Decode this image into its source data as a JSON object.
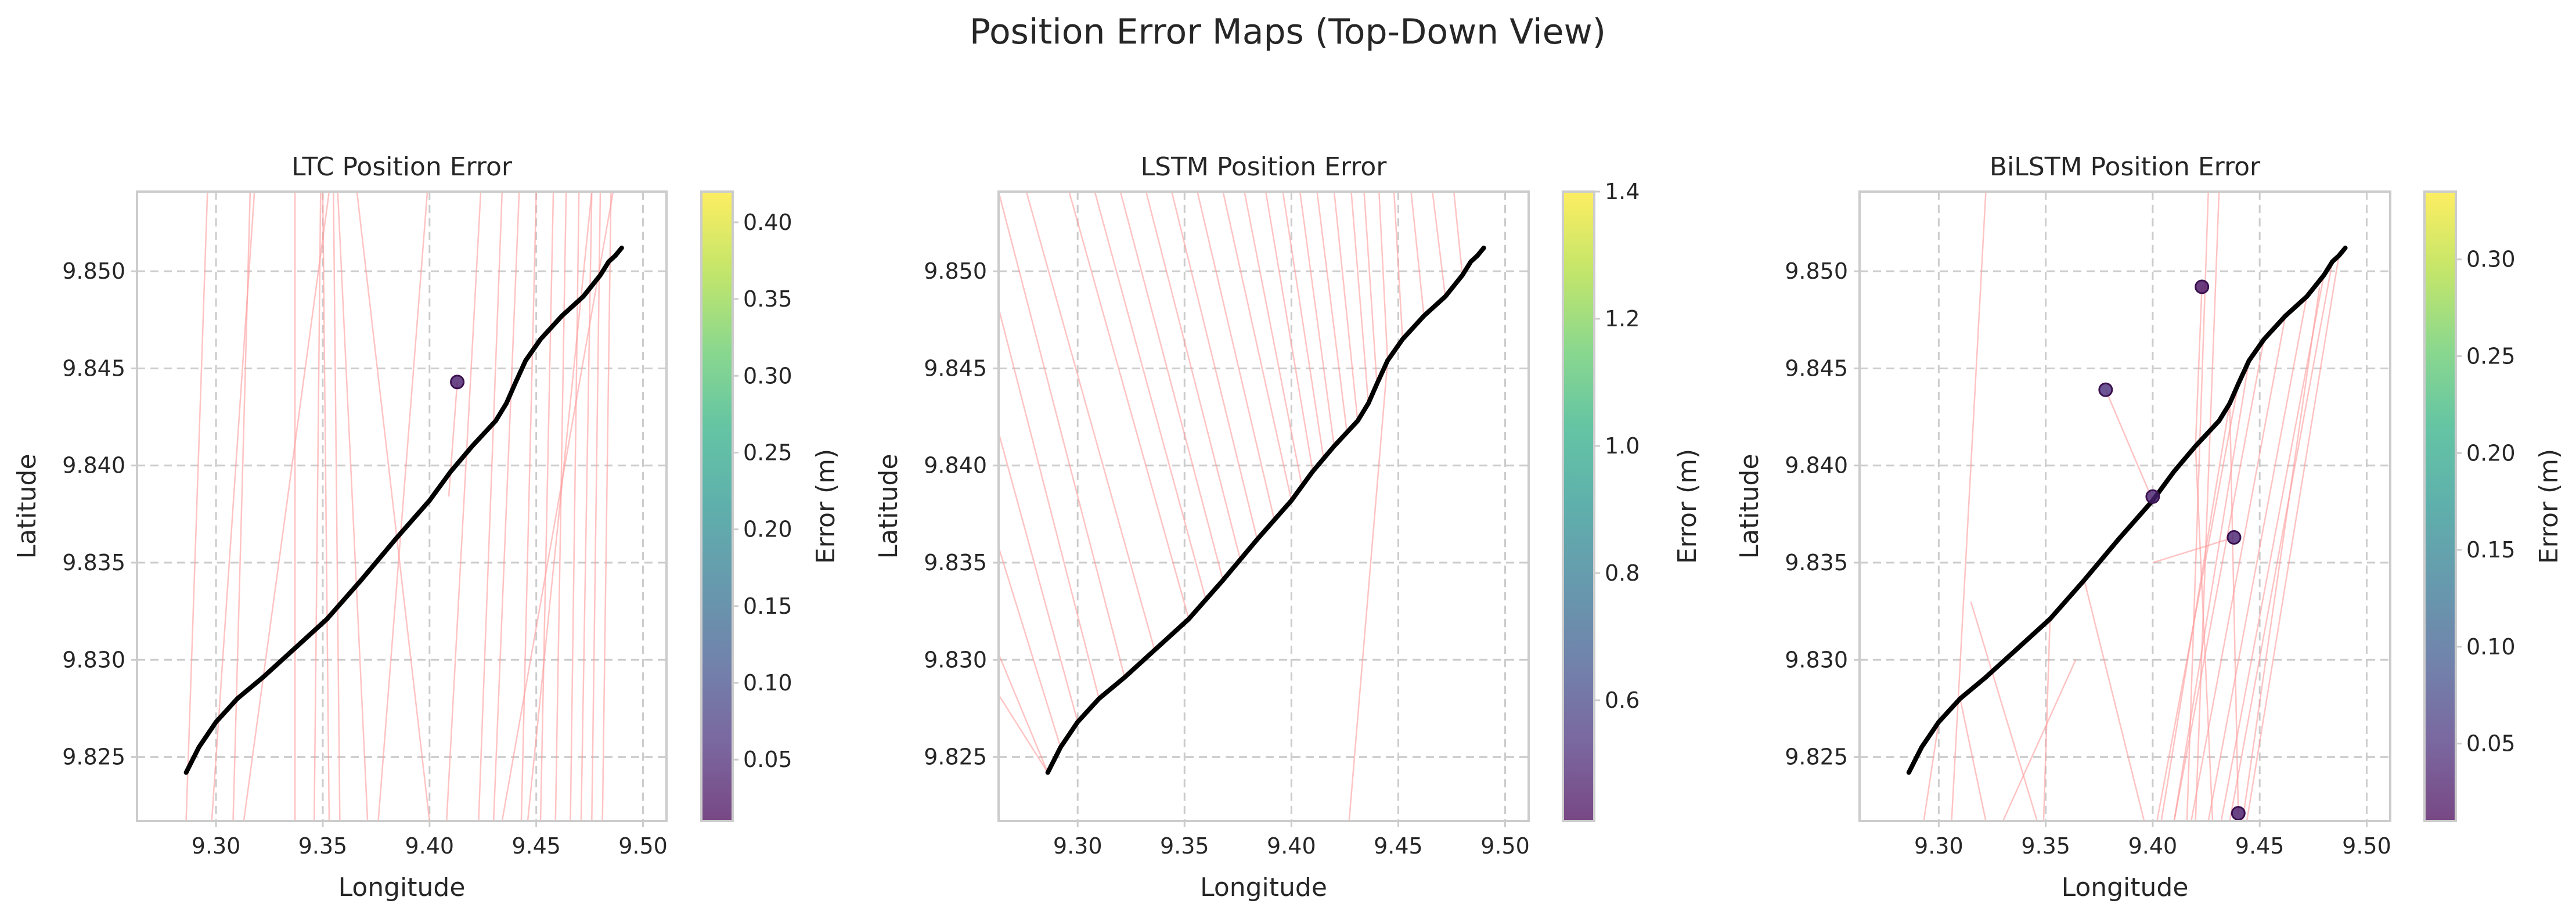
{
  "figure": {
    "suptitle": "Position Error Maps (Top-Down View)"
  },
  "chart_data": [
    {
      "type": "scatter",
      "title": "LTC Position Error",
      "xlabel": "Longitude",
      "ylabel": "Latitude",
      "colorbar_label": "Error (m)",
      "xlim": [
        9.263,
        9.511
      ],
      "ylim": [
        9.8217,
        9.8541
      ],
      "xticks": [
        "9.30",
        "9.35",
        "9.40",
        "9.45",
        "9.50"
      ],
      "yticks": [
        "9.825",
        "9.830",
        "9.835",
        "9.840",
        "9.845",
        "9.850"
      ],
      "grid": true,
      "colorbar": {
        "min": 0.01,
        "max": 0.42,
        "ticks": [
          "0.05",
          "0.10",
          "0.15",
          "0.20",
          "0.25",
          "0.30",
          "0.35",
          "0.40"
        ]
      },
      "truth": {
        "x": [
          9.286,
          9.292,
          9.3,
          9.31,
          9.322,
          9.336,
          9.352,
          9.368,
          9.384,
          9.4,
          9.41,
          9.42,
          9.431,
          9.436,
          9.44,
          9.445,
          9.452,
          9.462,
          9.472,
          9.48,
          9.484,
          9.487,
          9.49
        ],
        "y": [
          9.8242,
          9.8255,
          9.8268,
          9.828,
          9.8291,
          9.8305,
          9.8321,
          9.8341,
          9.8362,
          9.8382,
          9.8397,
          9.841,
          9.8423,
          9.8432,
          9.8442,
          9.8454,
          9.8465,
          9.8477,
          9.8487,
          9.8498,
          9.8505,
          9.8508,
          9.8512
        ]
      },
      "error_segments": [
        {
          "from": [
            9.286,
            9.8217
          ],
          "to": [
            9.296,
            9.8541
          ]
        },
        {
          "from": [
            9.298,
            9.8217
          ],
          "to": [
            9.318,
            9.8541
          ]
        },
        {
          "from": [
            9.313,
            9.8217
          ],
          "to": [
            9.353,
            9.8541
          ]
        },
        {
          "from": [
            9.308,
            9.8217
          ],
          "to": [
            9.316,
            9.8541
          ]
        },
        {
          "from": [
            9.337,
            9.8217
          ],
          "to": [
            9.337,
            9.8541
          ]
        },
        {
          "from": [
            9.346,
            9.8217
          ],
          "to": [
            9.349,
            9.8541
          ]
        },
        {
          "from": [
            9.353,
            9.8217
          ],
          "to": [
            9.35,
            9.8541
          ]
        },
        {
          "from": [
            9.358,
            9.8217
          ],
          "to": [
            9.355,
            9.8541
          ]
        },
        {
          "from": [
            9.371,
            9.8217
          ],
          "to": [
            9.357,
            9.8541
          ]
        },
        {
          "from": [
            9.4,
            9.8217
          ],
          "to": [
            9.366,
            9.8541
          ]
        },
        {
          "from": [
            9.376,
            9.8217
          ],
          "to": [
            9.399,
            9.8541
          ]
        },
        {
          "from": [
            9.413,
            9.8443
          ],
          "to": [
            9.409,
            9.8384
          ]
        },
        {
          "from": [
            9.408,
            9.8217
          ],
          "to": [
            9.424,
            9.8541
          ]
        },
        {
          "from": [
            9.423,
            9.8217
          ],
          "to": [
            9.434,
            9.8541
          ]
        },
        {
          "from": [
            9.43,
            9.8217
          ],
          "to": [
            9.442,
            9.8541
          ]
        },
        {
          "from": [
            9.443,
            9.8217
          ],
          "to": [
            9.45,
            9.8541
          ]
        },
        {
          "from": [
            9.452,
            9.8217
          ],
          "to": [
            9.458,
            9.8541
          ]
        },
        {
          "from": [
            9.459,
            9.8217
          ],
          "to": [
            9.464,
            9.8541
          ]
        },
        {
          "from": [
            9.466,
            9.8217
          ],
          "to": [
            9.47,
            9.8541
          ]
        },
        {
          "from": [
            9.471,
            9.8217
          ],
          "to": [
            9.476,
            9.8541
          ]
        },
        {
          "from": [
            9.476,
            9.8217
          ],
          "to": [
            9.48,
            9.8541
          ]
        },
        {
          "from": [
            9.481,
            9.8217
          ],
          "to": [
            9.485,
            9.8541
          ]
        },
        {
          "from": [
            9.446,
            9.8217
          ],
          "to": [
            9.476,
            9.8541
          ]
        },
        {
          "from": [
            9.434,
            9.8217
          ],
          "to": [
            9.486,
            9.8541
          ]
        }
      ],
      "points": [
        {
          "x": 9.413,
          "y": 9.8443,
          "error": 0.04
        }
      ]
    },
    {
      "type": "scatter",
      "title": "LSTM Position Error",
      "xlabel": "Longitude",
      "ylabel": "Latitude",
      "colorbar_label": "Error (m)",
      "xlim": [
        9.263,
        9.511
      ],
      "ylim": [
        9.8217,
        9.8541
      ],
      "xticks": [
        "9.30",
        "9.35",
        "9.40",
        "9.45",
        "9.50"
      ],
      "yticks": [
        "9.825",
        "9.830",
        "9.835",
        "9.840",
        "9.845",
        "9.850"
      ],
      "grid": true,
      "colorbar": {
        "min": 0.41,
        "max": 1.4,
        "ticks": [
          "0.6",
          "0.8",
          "1.0",
          "1.2",
          "1.4"
        ]
      },
      "truth": {
        "x": [
          9.286,
          9.292,
          9.3,
          9.31,
          9.322,
          9.336,
          9.352,
          9.368,
          9.384,
          9.4,
          9.41,
          9.42,
          9.431,
          9.436,
          9.44,
          9.445,
          9.452,
          9.462,
          9.472,
          9.48,
          9.484,
          9.487,
          9.49
        ],
        "y": [
          9.8242,
          9.8255,
          9.8268,
          9.828,
          9.8291,
          9.8305,
          9.8321,
          9.8341,
          9.8362,
          9.8382,
          9.8397,
          9.841,
          9.8423,
          9.8432,
          9.8442,
          9.8454,
          9.8465,
          9.8477,
          9.8487,
          9.8498,
          9.8505,
          9.8508,
          9.8512
        ]
      },
      "error_segments": [
        {
          "from": [
            9.286,
            9.8242
          ],
          "to": [
            9.263,
            9.8303
          ]
        },
        {
          "from": [
            9.292,
            9.8255
          ],
          "to": [
            9.263,
            9.8358
          ]
        },
        {
          "from": [
            9.3,
            9.8268
          ],
          "to": [
            9.263,
            9.8417
          ]
        },
        {
          "from": [
            9.31,
            9.828
          ],
          "to": [
            9.263,
            9.8481
          ]
        },
        {
          "from": [
            9.322,
            9.8291
          ],
          "to": [
            9.263,
            9.8541
          ]
        },
        {
          "from": [
            9.336,
            9.8305
          ],
          "to": [
            9.276,
            9.8541
          ]
        },
        {
          "from": [
            9.352,
            9.8321
          ],
          "to": [
            9.296,
            9.8541
          ]
        },
        {
          "from": [
            9.36,
            9.8331
          ],
          "to": [
            9.308,
            9.8541
          ]
        },
        {
          "from": [
            9.368,
            9.8341
          ],
          "to": [
            9.32,
            9.8541
          ]
        },
        {
          "from": [
            9.376,
            9.8352
          ],
          "to": [
            9.332,
            9.8541
          ]
        },
        {
          "from": [
            9.384,
            9.8362
          ],
          "to": [
            9.344,
            9.8541
          ]
        },
        {
          "from": [
            9.392,
            9.8372
          ],
          "to": [
            9.356,
            9.8541
          ]
        },
        {
          "from": [
            9.4,
            9.8382
          ],
          "to": [
            9.368,
            9.8541
          ]
        },
        {
          "from": [
            9.405,
            9.8389
          ],
          "to": [
            9.378,
            9.8541
          ]
        },
        {
          "from": [
            9.41,
            9.8397
          ],
          "to": [
            9.388,
            9.8541
          ]
        },
        {
          "from": [
            9.415,
            9.8404
          ],
          "to": [
            9.396,
            9.8541
          ]
        },
        {
          "from": [
            9.42,
            9.841
          ],
          "to": [
            9.404,
            9.8541
          ]
        },
        {
          "from": [
            9.426,
            9.8417
          ],
          "to": [
            9.412,
            9.8541
          ]
        },
        {
          "from": [
            9.431,
            9.8423
          ],
          "to": [
            9.42,
            9.8541
          ]
        },
        {
          "from": [
            9.436,
            9.8432
          ],
          "to": [
            9.428,
            9.8541
          ]
        },
        {
          "from": [
            9.44,
            9.8442
          ],
          "to": [
            9.434,
            9.8541
          ]
        },
        {
          "from": [
            9.445,
            9.8454
          ],
          "to": [
            9.441,
            9.8541
          ]
        },
        {
          "from": [
            9.452,
            9.8465
          ],
          "to": [
            9.448,
            9.8541
          ]
        },
        {
          "from": [
            9.462,
            9.8477
          ],
          "to": [
            9.456,
            9.8541
          ]
        },
        {
          "from": [
            9.472,
            9.8487
          ],
          "to": [
            9.466,
            9.8541
          ]
        },
        {
          "from": [
            9.48,
            9.8498
          ],
          "to": [
            9.476,
            9.8541
          ]
        },
        {
          "from": [
            9.286,
            9.8242
          ],
          "to": [
            9.263,
            9.8282
          ]
        },
        {
          "from": [
            9.445,
            9.8454
          ],
          "to": [
            9.427,
            9.8217
          ]
        }
      ],
      "points": []
    },
    {
      "type": "scatter",
      "title": "BiLSTM Position Error",
      "xlabel": "Longitude",
      "ylabel": "Latitude",
      "colorbar_label": "Error (m)",
      "xlim": [
        9.263,
        9.511
      ],
      "ylim": [
        9.8217,
        9.8541
      ],
      "xticks": [
        "9.30",
        "9.35",
        "9.40",
        "9.45",
        "9.50"
      ],
      "yticks": [
        "9.825",
        "9.830",
        "9.835",
        "9.840",
        "9.845",
        "9.850"
      ],
      "grid": true,
      "colorbar": {
        "min": 0.01,
        "max": 0.335,
        "ticks": [
          "0.05",
          "0.10",
          "0.15",
          "0.20",
          "0.25",
          "0.30"
        ]
      },
      "truth": {
        "x": [
          9.286,
          9.292,
          9.3,
          9.31,
          9.322,
          9.336,
          9.352,
          9.368,
          9.384,
          9.4,
          9.41,
          9.42,
          9.431,
          9.436,
          9.44,
          9.445,
          9.452,
          9.462,
          9.472,
          9.48,
          9.484,
          9.487,
          9.49
        ],
        "y": [
          9.8242,
          9.8255,
          9.8268,
          9.828,
          9.8291,
          9.8305,
          9.8321,
          9.8341,
          9.8362,
          9.8382,
          9.8397,
          9.841,
          9.8423,
          9.8432,
          9.8442,
          9.8454,
          9.8465,
          9.8477,
          9.8487,
          9.8498,
          9.8505,
          9.8508,
          9.8512
        ]
      },
      "error_segments": [
        {
          "from": [
            9.423,
            9.8492
          ],
          "to": [
            9.42,
            9.841
          ]
        },
        {
          "from": [
            9.378,
            9.8439
          ],
          "to": [
            9.4,
            9.8382
          ]
        },
        {
          "from": [
            9.438,
            9.8363
          ],
          "to": [
            9.4,
            9.835
          ]
        },
        {
          "from": [
            9.44,
            9.8221
          ],
          "to": [
            9.436,
            9.8432
          ]
        },
        {
          "from": [
            9.293,
            9.8217
          ],
          "to": [
            9.3,
            9.8268
          ]
        },
        {
          "from": [
            9.306,
            9.8217
          ],
          "to": [
            9.322,
            9.8541
          ]
        },
        {
          "from": [
            9.322,
            9.8217
          ],
          "to": [
            9.31,
            9.828
          ]
        },
        {
          "from": [
            9.349,
            9.8217
          ],
          "to": [
            9.352,
            9.8321
          ]
        },
        {
          "from": [
            9.346,
            9.8217
          ],
          "to": [
            9.315,
            9.833
          ]
        },
        {
          "from": [
            9.396,
            9.8217
          ],
          "to": [
            9.368,
            9.8341
          ]
        },
        {
          "from": [
            9.33,
            9.8217
          ],
          "to": [
            9.364,
            9.83
          ]
        },
        {
          "from": [
            9.402,
            9.8217
          ],
          "to": [
            9.44,
            9.8442
          ]
        },
        {
          "from": [
            9.41,
            9.8217
          ],
          "to": [
            9.452,
            9.8465
          ]
        },
        {
          "from": [
            9.418,
            9.8217
          ],
          "to": [
            9.462,
            9.8477
          ]
        },
        {
          "from": [
            9.426,
            9.8217
          ],
          "to": [
            9.472,
            9.8487
          ]
        },
        {
          "from": [
            9.432,
            9.8217
          ],
          "to": [
            9.48,
            9.8498
          ]
        },
        {
          "from": [
            9.436,
            9.8217
          ],
          "to": [
            9.484,
            9.8505
          ]
        },
        {
          "from": [
            9.444,
            9.8217
          ],
          "to": [
            9.487,
            9.8508
          ]
        },
        {
          "from": [
            9.42,
            9.8217
          ],
          "to": [
            9.431,
            9.8541
          ]
        },
        {
          "from": [
            9.416,
            9.8217
          ],
          "to": [
            9.426,
            9.8541
          ]
        },
        {
          "from": [
            9.428,
            9.8217
          ],
          "to": [
            9.42,
            9.841
          ]
        },
        {
          "from": [
            9.41,
            9.8217
          ],
          "to": [
            9.445,
            9.8454
          ]
        },
        {
          "from": [
            9.404,
            9.8217
          ],
          "to": [
            9.436,
            9.8432
          ]
        },
        {
          "from": [
            9.442,
            9.8217
          ],
          "to": [
            9.478,
            9.8492
          ]
        }
      ],
      "points": [
        {
          "x": 9.423,
          "y": 9.8492,
          "error": 0.02
        },
        {
          "x": 9.378,
          "y": 9.8439,
          "error": 0.05
        },
        {
          "x": 9.4,
          "y": 9.8384,
          "error": 0.04
        },
        {
          "x": 9.438,
          "y": 9.8363,
          "error": 0.04
        },
        {
          "x": 9.44,
          "y": 9.8221,
          "error": 0.03
        }
      ]
    }
  ]
}
